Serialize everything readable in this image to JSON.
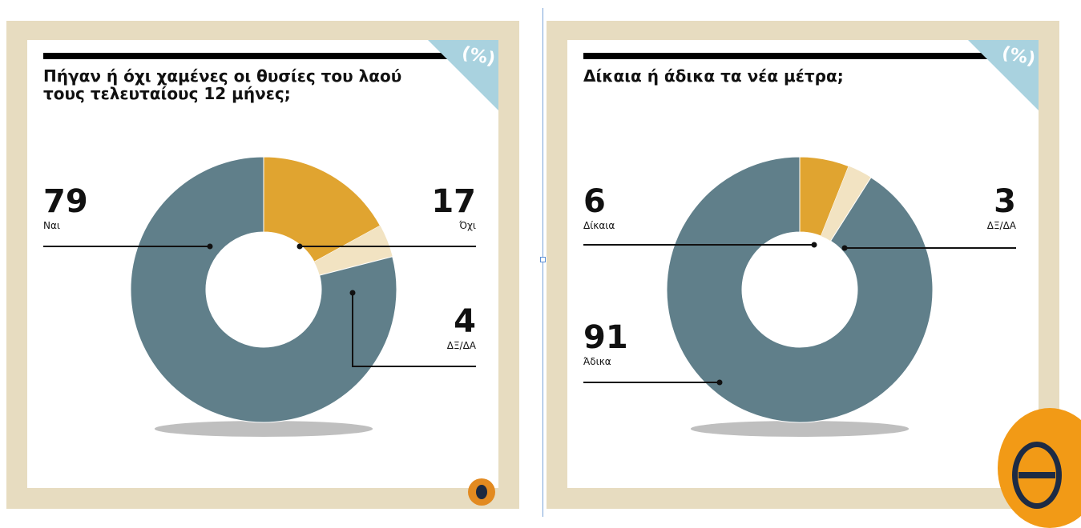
{
  "corner_badge": "(%)",
  "chart_data": [
    {
      "type": "pie",
      "variant": "donut",
      "title": "Πήγαν ή όχι χαμένες οι θυσίες του λαού τους τελευταίους 12 μήνες;",
      "unit": "%",
      "slices": [
        {
          "label": "Όχι",
          "value": 17,
          "color": "#e0a430"
        },
        {
          "label": "ΔΞ/ΔΑ",
          "value": 4,
          "color": "#f2e3c2"
        },
        {
          "label": "Ναι",
          "value": 79,
          "color": "#607f8a"
        }
      ]
    },
    {
      "type": "pie",
      "variant": "donut",
      "title": "Δίκαια ή άδικα τα νέα μέτρα;",
      "unit": "%",
      "slices": [
        {
          "label": "Δίκαια",
          "value": 6,
          "color": "#e0a430"
        },
        {
          "label": "ΔΞ/ΔΑ",
          "value": 3,
          "color": "#f2e3c2"
        },
        {
          "label": "Άδικα",
          "value": 91,
          "color": "#607f8a"
        }
      ]
    }
  ],
  "colors": {
    "frame": "#e7dcc0",
    "accent": "#e0a430",
    "neutral": "#f2e3c2",
    "majority": "#607f8a",
    "corner": "#a9d2df",
    "logo": "#f29a16"
  },
  "icons": [
    "theta-logo-icon",
    "small-logo-icon"
  ]
}
